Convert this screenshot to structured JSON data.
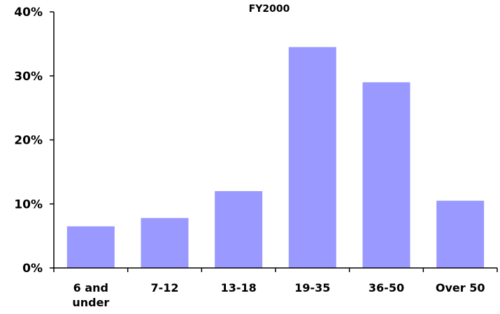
{
  "chart_data": {
    "type": "bar",
    "title": "FY2000",
    "categories": [
      "6 and under",
      "7-12",
      "13-18",
      "19-35",
      "36-50",
      "Over 50"
    ],
    "category_label_lines": [
      [
        "6 and",
        "under"
      ],
      [
        "7-12"
      ],
      [
        "13-18"
      ],
      [
        "19-35"
      ],
      [
        "36-50"
      ],
      [
        "Over 50"
      ]
    ],
    "values": [
      6.5,
      7.8,
      12.0,
      34.5,
      29.0,
      10.5
    ],
    "ylim": [
      0,
      40
    ],
    "yticks": [
      0,
      10,
      20,
      30,
      40
    ],
    "ytick_labels": [
      "0%",
      "10%",
      "20%",
      "30%",
      "40%"
    ],
    "xlabel": "",
    "ylabel": "",
    "grid": false,
    "legend": "none",
    "bar_color": "#9999ff",
    "axis_color": "#000000"
  }
}
